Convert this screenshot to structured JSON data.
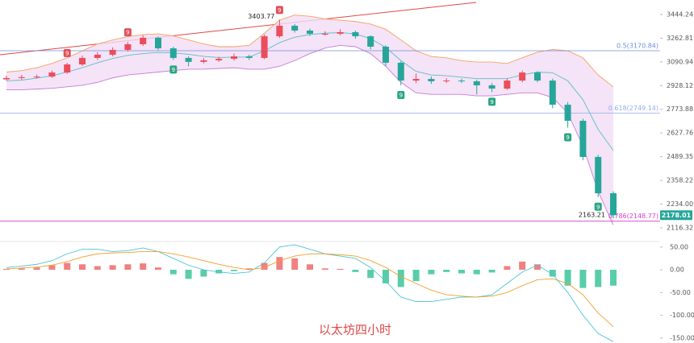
{
  "chart_data": {
    "type": "candlestick",
    "caption": "以太坊四小时",
    "up_color": "#eb4d5c",
    "down_color": "#26a69a",
    "log": true,
    "ylim": [
      2051,
      3560
    ],
    "yticks": [
      3444.24,
      3262.81,
      3090.94,
      2928.12,
      2773.88,
      2627.76,
      2489.35,
      2358.22,
      {
        "value": 2234,
        "label": "2234.00"
      },
      2116.32
    ],
    "ohlc": [
      [
        2970,
        2995,
        2960,
        2979
      ],
      [
        2979,
        3000,
        2968,
        2985
      ],
      [
        2985,
        3002,
        2975,
        2989
      ],
      [
        2989,
        3030,
        2980,
        3017
      ],
      [
        3017,
        3085,
        3008,
        3073
      ],
      [
        3073,
        3135,
        3062,
        3119
      ],
      [
        3119,
        3160,
        3105,
        3142
      ],
      [
        3142,
        3195,
        3130,
        3177
      ],
      [
        3177,
        3235,
        3165,
        3218
      ],
      [
        3218,
        3285,
        3205,
        3266
      ],
      [
        3266,
        3275,
        3175,
        3188
      ],
      [
        3188,
        3200,
        3105,
        3119
      ],
      [
        3119,
        3130,
        3060,
        3091
      ],
      [
        3091,
        3118,
        3080,
        3102
      ],
      [
        3102,
        3128,
        3090,
        3113
      ],
      [
        3113,
        3150,
        3100,
        3130
      ],
      [
        3130,
        3142,
        3105,
        3119
      ],
      [
        3119,
        3290,
        3110,
        3277
      ],
      [
        3277,
        3403.77,
        3265,
        3357
      ],
      [
        3357,
        3370,
        3305,
        3320
      ],
      [
        3320,
        3335,
        3280,
        3296
      ],
      [
        3296,
        3315,
        3282,
        3296
      ],
      [
        3296,
        3330,
        3285,
        3308
      ],
      [
        3308,
        3320,
        3260,
        3277
      ],
      [
        3277,
        3285,
        3180,
        3200
      ],
      [
        3200,
        3210,
        3060,
        3085
      ],
      [
        3085,
        3095,
        2930,
        2962
      ],
      [
        2962,
        3010,
        2945,
        2973
      ],
      [
        2973,
        2990,
        2940,
        2957
      ],
      [
        2957,
        2978,
        2945,
        2962
      ],
      [
        2962,
        2975,
        2945,
        2957
      ],
      [
        2957,
        2968,
        2870,
        2930
      ],
      [
        2930,
        2945,
        2885,
        2908
      ],
      [
        2908,
        2975,
        2900,
        2962
      ],
      [
        2962,
        3030,
        2950,
        3017
      ],
      [
        3017,
        3025,
        2950,
        2962
      ],
      [
        2962,
        2975,
        2780,
        2803
      ],
      [
        2803,
        2820,
        2660,
        2702
      ],
      [
        2702,
        2715,
        2470,
        2488
      ],
      [
        2488,
        2500,
        2270,
        2290
      ],
      [
        2290,
        2300,
        2163.21,
        2178.01
      ]
    ],
    "bands": [
      {
        "color": "#f5a25d",
        "values": [
          3020,
          3030,
          3050,
          3080,
          3120,
          3170,
          3220,
          3250,
          3275,
          3290,
          3295,
          3280,
          3250,
          3220,
          3200,
          3200,
          3210,
          3300,
          3400,
          3440,
          3430,
          3410,
          3400,
          3390,
          3370,
          3330,
          3250,
          3170,
          3130,
          3120,
          3100,
          3090,
          3090,
          3080,
          3120,
          3160,
          3180,
          3170,
          3120,
          3000,
          2920
        ]
      },
      {
        "color": "#5bc0c0",
        "values": [
          2960,
          2965,
          2978,
          2995,
          3020,
          3050,
          3085,
          3115,
          3138,
          3150,
          3158,
          3155,
          3145,
          3130,
          3122,
          3125,
          3125,
          3170,
          3230,
          3270,
          3290,
          3300,
          3305,
          3295,
          3260,
          3195,
          3100,
          3025,
          3000,
          2995,
          2985,
          2975,
          2975,
          2975,
          3000,
          3020,
          3015,
          2960,
          2835,
          2650,
          2525
        ]
      },
      {
        "color": "#c77dd6",
        "values": [
          2900,
          2900,
          2905,
          2910,
          2920,
          2930,
          2950,
          2980,
          3000,
          3010,
          3020,
          3030,
          3040,
          3040,
          3045,
          3050,
          3040,
          3040,
          3060,
          3100,
          3150,
          3190,
          3210,
          3200,
          3150,
          3060,
          2950,
          2880,
          2870,
          2870,
          2870,
          2860,
          2860,
          2870,
          2880,
          2880,
          2850,
          2750,
          2550,
          2300,
          2130
        ]
      }
    ],
    "band_fill": "#f2dcf6",
    "fib_levels": [
      {
        "label": "0.5(3170.84)",
        "value": 3170.84,
        "color": "#6b8fdc"
      },
      {
        "label": "0.618(2749.14)",
        "value": 2749.14,
        "color": "#8fb0e6"
      },
      {
        "label": "0.786(2148.77)",
        "value": 2148.77,
        "color": "#d43fc9"
      }
    ],
    "td_marks": [
      {
        "at": 4,
        "label": "9",
        "color": "#e0505a"
      },
      {
        "at": 8,
        "label": "9",
        "color": "#e0505a"
      },
      {
        "at": 18,
        "label": "9",
        "color": "#e0505a"
      },
      {
        "at": 11,
        "label": "9",
        "color": "#2aa583"
      },
      {
        "at": 26,
        "label": "9",
        "color": "#2aa583"
      },
      {
        "at": 32,
        "label": "9",
        "color": "#2aa583"
      },
      {
        "at": 37,
        "label": "9",
        "color": "#2aa583"
      },
      {
        "at": 39,
        "label": "9",
        "color": "#2aa583"
      }
    ],
    "macd": {
      "ylim": [
        -161,
        62
      ],
      "yticks": [
        {
          "value": 50,
          "label": "50.00"
        },
        {
          "value": 0,
          "label": "0.00"
        },
        {
          "value": -50,
          "label": "-50.00"
        },
        {
          "value": -100,
          "label": "-100.00"
        },
        {
          "value": -150,
          "label": "-150.00"
        }
      ],
      "histogram": [
        2,
        3,
        5,
        10,
        15,
        12,
        8,
        10,
        12,
        14,
        5,
        -10,
        -20,
        -15,
        -8,
        -3,
        3,
        15,
        28,
        25,
        12,
        3,
        2,
        -5,
        -18,
        -30,
        -38,
        -25,
        -10,
        -5,
        -8,
        -10,
        -6,
        8,
        18,
        12,
        -15,
        -35,
        -40,
        -38,
        -35
      ],
      "up_color": "#ef6a6a",
      "down_color": "#3cc49a",
      "series": [
        {
          "color": "#4cc3d6",
          "values": [
            5,
            8,
            12,
            20,
            35,
            45,
            45,
            40,
            42,
            48,
            40,
            25,
            10,
            0,
            -5,
            -8,
            -5,
            15,
            50,
            55,
            45,
            35,
            30,
            25,
            5,
            -25,
            -60,
            -70,
            -70,
            -65,
            -60,
            -60,
            -55,
            -30,
            -5,
            10,
            -10,
            -50,
            -100,
            -140,
            -158
          ]
        },
        {
          "color": "#f0a030",
          "values": [
            2,
            4,
            6,
            10,
            18,
            28,
            35,
            37,
            38,
            40,
            40,
            35,
            28,
            20,
            12,
            5,
            0,
            5,
            20,
            30,
            35,
            35,
            33,
            30,
            20,
            5,
            -15,
            -30,
            -45,
            -55,
            -58,
            -60,
            -58,
            -50,
            -35,
            -22,
            -20,
            -30,
            -55,
            -95,
            -125
          ]
        }
      ]
    }
  }
}
